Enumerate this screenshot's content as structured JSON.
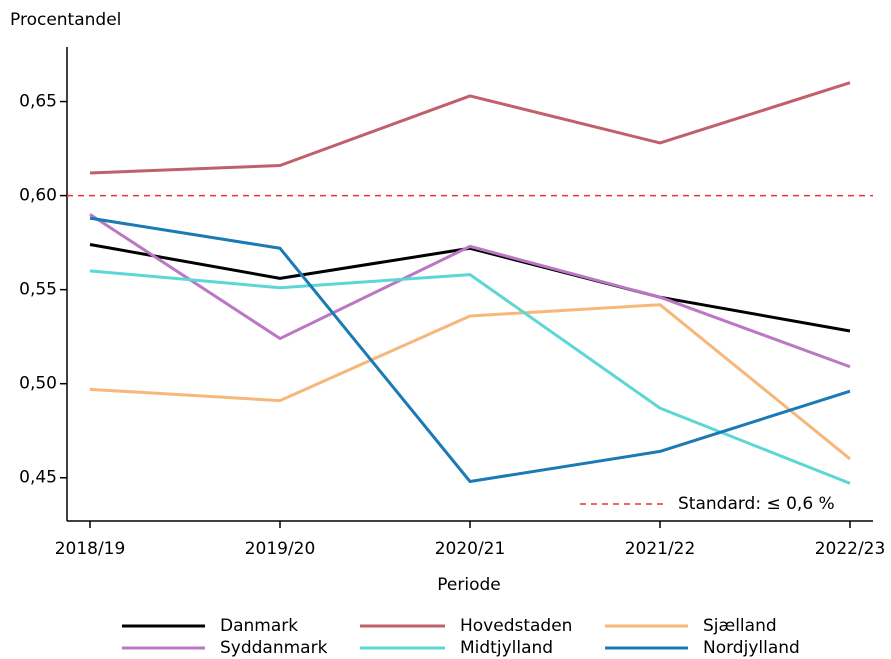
{
  "chart_data": {
    "type": "line",
    "y_label": "Procentandel",
    "x_label": "Periode",
    "categories": [
      "2018/19",
      "2019/20",
      "2020/21",
      "2021/22",
      "2022/23"
    ],
    "series": [
      {
        "name": "Danmark",
        "color": "#000000",
        "values": [
          0.574,
          0.556,
          0.572,
          0.546,
          0.528
        ]
      },
      {
        "name": "Hovedstaden",
        "color": "#c0606a",
        "values": [
          0.612,
          0.616,
          0.653,
          0.628,
          0.66
        ]
      },
      {
        "name": "Sjælland",
        "color": "#f5b87a",
        "values": [
          0.497,
          0.491,
          0.536,
          0.542,
          0.46
        ]
      },
      {
        "name": "Syddanmark",
        "color": "#bb77c4",
        "values": [
          0.59,
          0.524,
          0.573,
          0.546,
          0.509
        ]
      },
      {
        "name": "Midtjylland",
        "color": "#5dd6d6",
        "values": [
          0.56,
          0.551,
          0.558,
          0.487,
          0.447
        ]
      },
      {
        "name": "Nordjylland",
        "color": "#1a7ab5",
        "values": [
          0.588,
          0.572,
          0.448,
          0.464,
          0.496
        ]
      }
    ],
    "reference_line": {
      "value": 0.6,
      "label": "Standard: ≤ 0,6 %",
      "color": "#e8333a"
    },
    "ylim": [
      0.427,
      0.679
    ],
    "yticks": [
      {
        "value": 0.45,
        "label": "0,45"
      },
      {
        "value": 0.5,
        "label": "0,50"
      },
      {
        "value": 0.55,
        "label": "0,55"
      },
      {
        "value": 0.6,
        "label": "0,60"
      },
      {
        "value": 0.65,
        "label": "0,65"
      }
    ],
    "grid": false,
    "legend": "bottom"
  }
}
